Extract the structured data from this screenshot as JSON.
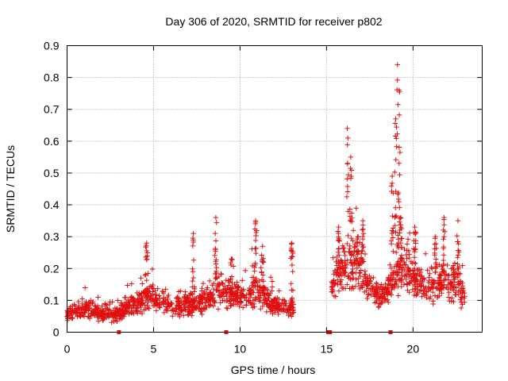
{
  "chart_data": {
    "type": "scatter",
    "title": "Day 306 of 2020, SRMTID for receiver p802",
    "xlabel": "GPS time / hours",
    "ylabel": "SRMTID / TECUs",
    "xlim": [
      0,
      24
    ],
    "ylim": [
      0,
      0.9
    ],
    "x_ticks": [
      0,
      5,
      10,
      15,
      20
    ],
    "x_tick_labels": [
      "0",
      "5",
      "10",
      "15",
      "20"
    ],
    "y_ticks": [
      0,
      0.1,
      0.2,
      0.3,
      0.4,
      0.5,
      0.6,
      0.7,
      0.8,
      0.9
    ],
    "y_tick_labels": [
      "0",
      "0.1",
      "0.2",
      "0.3",
      "0.4",
      "0.5",
      "0.6",
      "0.7",
      "0.8",
      "0.9"
    ],
    "grid": true,
    "marker": "+",
    "color": "#e01010",
    "baseline_markers_x": [
      3.0,
      9.2,
      15.1,
      15.2,
      18.7
    ],
    "envelope": {
      "description": "approximate typical level and spread of the dense point cloud, hours vs TECU",
      "x": [
        0.0,
        1.0,
        2.0,
        3.0,
        4.0,
        5.0,
        6.0,
        7.0,
        8.0,
        8.7,
        9.5,
        10.5,
        11.0,
        11.5,
        12.0,
        12.5,
        13.0,
        15.3,
        16.0,
        16.5,
        17.0,
        17.5,
        18.0,
        18.5,
        19.0,
        19.5,
        20.0,
        20.5,
        21.0,
        21.5,
        22.0,
        22.5,
        23.0
      ],
      "level": [
        0.06,
        0.07,
        0.06,
        0.06,
        0.09,
        0.11,
        0.08,
        0.08,
        0.1,
        0.14,
        0.11,
        0.11,
        0.15,
        0.1,
        0.08,
        0.08,
        0.08,
        0.15,
        0.2,
        0.22,
        0.19,
        0.14,
        0.11,
        0.13,
        0.17,
        0.2,
        0.18,
        0.15,
        0.14,
        0.16,
        0.15,
        0.16,
        0.11
      ],
      "spread": [
        0.025,
        0.03,
        0.03,
        0.03,
        0.04,
        0.05,
        0.035,
        0.04,
        0.05,
        0.07,
        0.05,
        0.05,
        0.08,
        0.05,
        0.03,
        0.03,
        0.04,
        0.05,
        0.08,
        0.1,
        0.07,
        0.05,
        0.04,
        0.05,
        0.07,
        0.08,
        0.07,
        0.05,
        0.06,
        0.07,
        0.07,
        0.08,
        0.04
      ]
    },
    "peaks": [
      {
        "x": 4.6,
        "y": 0.28
      },
      {
        "x": 7.3,
        "y": 0.31
      },
      {
        "x": 8.6,
        "y": 0.36
      },
      {
        "x": 9.5,
        "y": 0.23
      },
      {
        "x": 10.9,
        "y": 0.35
      },
      {
        "x": 11.3,
        "y": 0.27
      },
      {
        "x": 13.0,
        "y": 0.28
      },
      {
        "x": 15.7,
        "y": 0.33
      },
      {
        "x": 16.2,
        "y": 0.64
      },
      {
        "x": 16.4,
        "y": 0.55
      },
      {
        "x": 16.8,
        "y": 0.3
      },
      {
        "x": 17.1,
        "y": 0.35
      },
      {
        "x": 18.8,
        "y": 0.49
      },
      {
        "x": 19.0,
        "y": 0.67
      },
      {
        "x": 19.1,
        "y": 0.84
      },
      {
        "x": 19.2,
        "y": 0.76
      },
      {
        "x": 19.3,
        "y": 0.36
      },
      {
        "x": 20.1,
        "y": 0.33
      },
      {
        "x": 21.3,
        "y": 0.3
      },
      {
        "x": 21.8,
        "y": 0.36
      },
      {
        "x": 22.6,
        "y": 0.35
      }
    ]
  }
}
